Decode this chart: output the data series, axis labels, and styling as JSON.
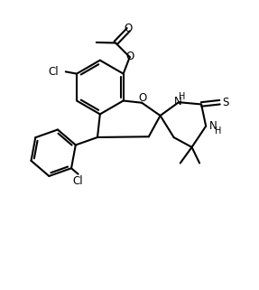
{
  "bg_color": "#ffffff",
  "line_color": "#000000",
  "label_color": "#000000",
  "line_width": 1.5,
  "font_size": 8.5,
  "figsize": [
    2.87,
    3.21
  ],
  "dpi": 100,
  "xlim": [
    0,
    10
  ],
  "ylim": [
    0,
    11
  ]
}
